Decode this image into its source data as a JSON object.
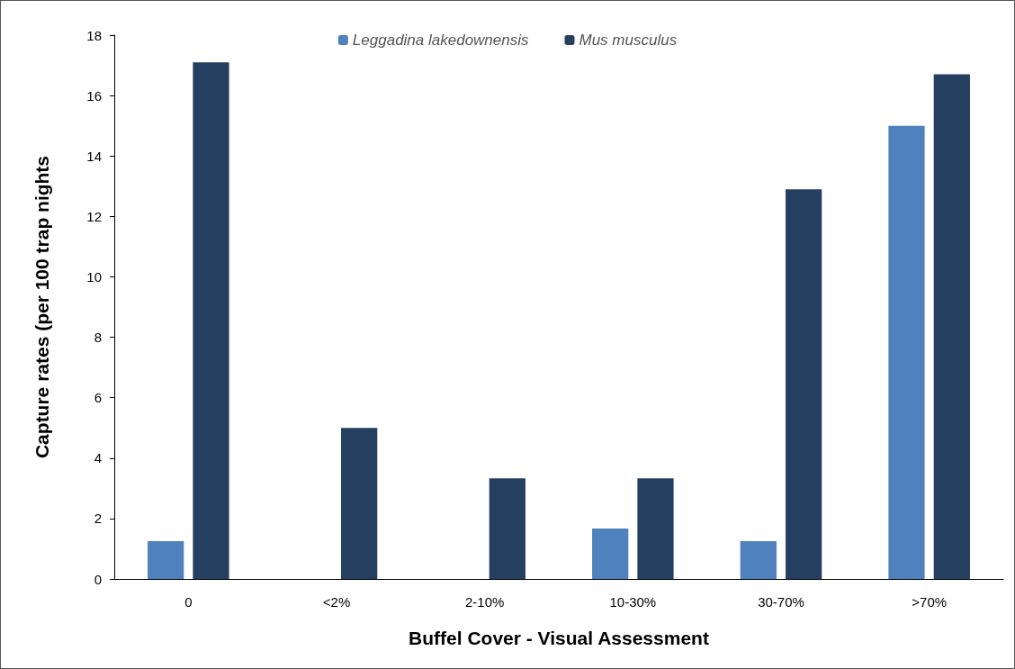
{
  "chart_data": {
    "type": "bar",
    "xlabel": "Buffel Cover - Visual Assessment",
    "ylabel": "Capture rates (per 100 trap nights",
    "categories": [
      "0",
      "<2%",
      "2-10%",
      "10-30%",
      "30-70%",
      ">70%"
    ],
    "series": [
      {
        "name": "Leggadina lakedownensis",
        "color": "#4f81bd",
        "values": [
          1.25,
          0,
          0,
          1.67,
          1.25,
          15
        ]
      },
      {
        "name": "Mus musculus",
        "color": "#243f60",
        "values": [
          17.1,
          5,
          3.33,
          3.33,
          12.9,
          16.7
        ]
      }
    ],
    "ylim": [
      0,
      18
    ],
    "yticks": [
      0,
      2,
      4,
      6,
      8,
      10,
      12,
      14,
      16,
      18
    ],
    "grid": false,
    "legend": "top"
  }
}
